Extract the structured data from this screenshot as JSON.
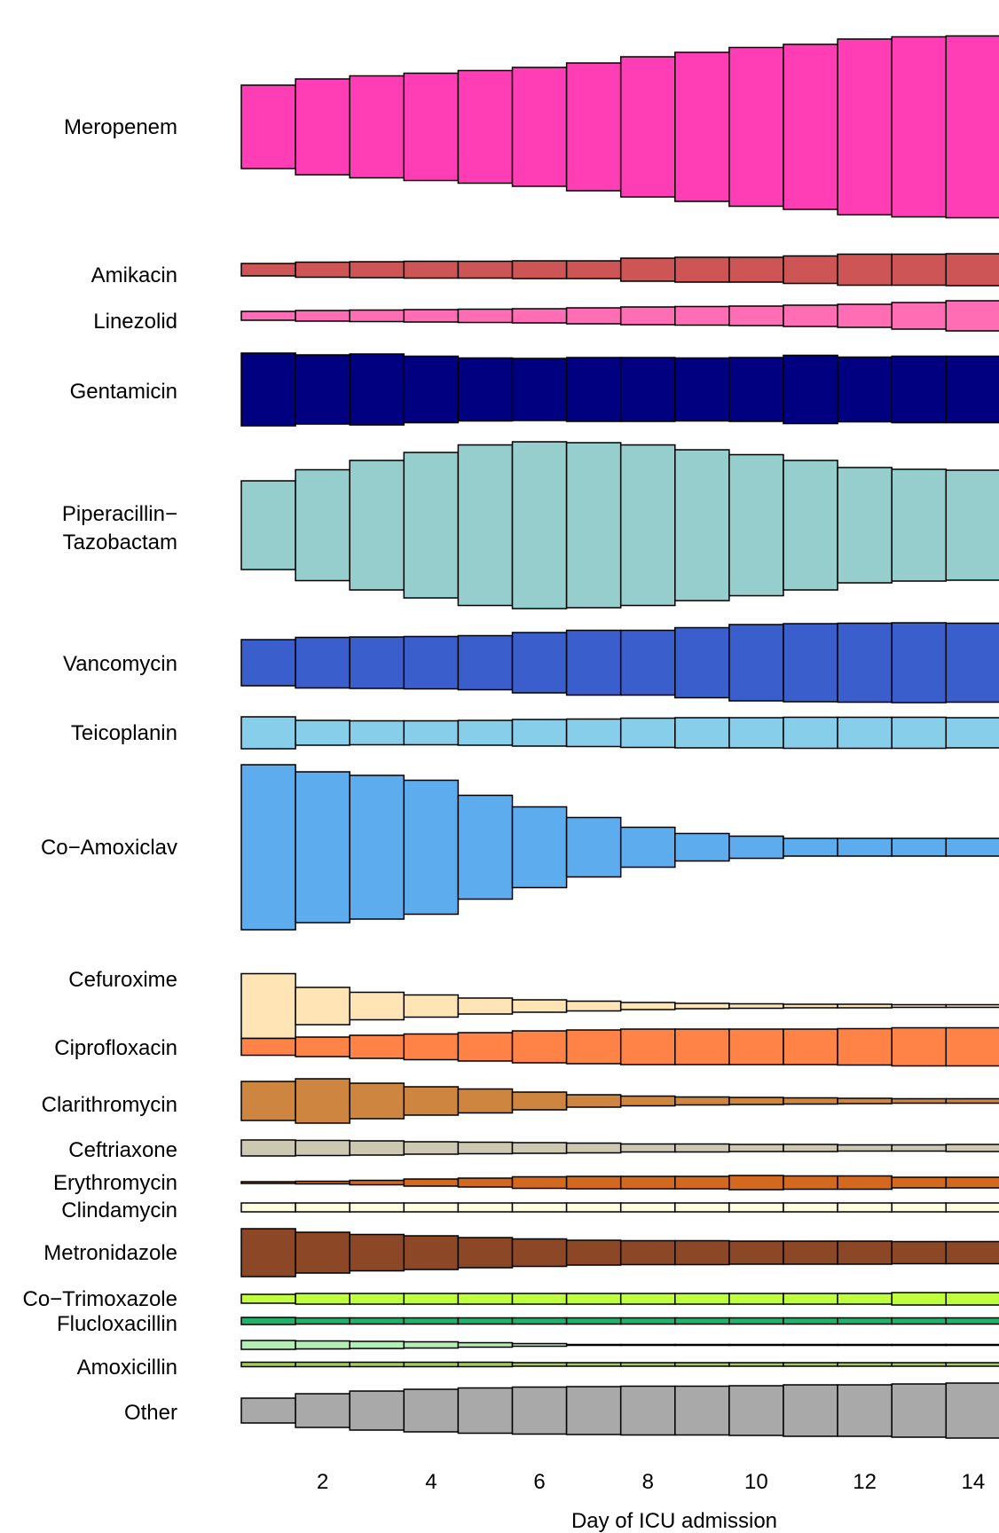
{
  "chart_data": {
    "type": "bar",
    "subtype": "stacked-width-streams",
    "xlabel": "Day of ICU admission",
    "x_ticks": [
      2,
      4,
      6,
      8,
      10,
      12,
      14
    ],
    "days": [
      1,
      2,
      3,
      4,
      5,
      6,
      7,
      8,
      9,
      10,
      11,
      12,
      13,
      14
    ],
    "series": [
      {
        "name": "Meropenem",
        "label_lines": [
          "Meropenem"
        ],
        "color": "#FF3EB5",
        "values": [
          94,
          108,
          115,
          121,
          127,
          134,
          144,
          158,
          168,
          179,
          186,
          198,
          203,
          205
        ]
      },
      {
        "name": "Amikacin",
        "label_lines": [
          "Amikacin"
        ],
        "color": "#CD5555",
        "values": [
          14,
          17,
          18,
          19,
          19,
          20,
          20,
          26,
          28,
          28,
          31,
          35,
          35,
          36
        ]
      },
      {
        "name": "Linezolid",
        "label_lines": [
          "Linezolid"
        ],
        "color": "#FF6EB4",
        "values": [
          10,
          12,
          13,
          14,
          15,
          16,
          18,
          20,
          21,
          22,
          24,
          26,
          30,
          34
        ]
      },
      {
        "name": "Gentamicin",
        "label_lines": [
          "Gentamicin"
        ],
        "color": "#000080",
        "values": [
          82,
          78,
          80,
          75,
          71,
          70,
          72,
          72,
          71,
          72,
          77,
          73,
          75,
          75
        ]
      },
      {
        "name": "Piperacillin-Tazobactam",
        "label_lines": [
          "Piperacillin−",
          "Tazobactam"
        ],
        "color": "#96CDCD",
        "values": [
          100,
          125,
          146,
          164,
          181,
          188,
          186,
          181,
          170,
          159,
          146,
          130,
          126,
          124
        ]
      },
      {
        "name": "Vancomycin",
        "label_lines": [
          "Vancomycin"
        ],
        "color": "#3A5FCD",
        "values": [
          52,
          57,
          58,
          59,
          61,
          68,
          73,
          73,
          79,
          86,
          88,
          89,
          90,
          89
        ]
      },
      {
        "name": "Teicoplanin",
        "label_lines": [
          "Teicoplanin"
        ],
        "color": "#87CEEB",
        "values": [
          36,
          28,
          27,
          27,
          28,
          30,
          31,
          33,
          34,
          34,
          35,
          35,
          35,
          34
        ]
      },
      {
        "name": "Co-Amoxiclav",
        "label_lines": [
          "Co−Amoxiclav"
        ],
        "color": "#5CACEE",
        "values": [
          186,
          170,
          162,
          151,
          117,
          91,
          67,
          45,
          31,
          25,
          20,
          20,
          20,
          20
        ]
      },
      {
        "name": "Cefuroxime",
        "label_lines": [
          "Cefuroxime"
        ],
        "color": "#FFE4B5",
        "values": [
          73,
          42,
          31,
          25,
          18,
          14,
          11,
          8,
          6,
          5,
          4,
          4,
          3,
          3
        ]
      },
      {
        "name": "Ciprofloxacin",
        "label_lines": [
          "Ciprofloxacin"
        ],
        "color": "#FF8247",
        "values": [
          19,
          22,
          26,
          29,
          32,
          36,
          38,
          40,
          40,
          40,
          40,
          41,
          43,
          43
        ]
      },
      {
        "name": "Clarithromycin",
        "label_lines": [
          "Clarithromycin"
        ],
        "color": "#CD853F",
        "values": [
          44,
          50,
          40,
          32,
          27,
          20,
          14,
          11,
          9,
          8,
          7,
          6,
          5,
          5
        ]
      },
      {
        "name": "Ceftriaxone",
        "label_lines": [
          "Ceftriaxone"
        ],
        "color": "#CDC8B1",
        "values": [
          18,
          17,
          16,
          14,
          13,
          12,
          11,
          9,
          9,
          8,
          8,
          7,
          7,
          8
        ]
      },
      {
        "name": "Erythromycin",
        "label_lines": [
          "Erythromycin"
        ],
        "color": "#D2691E",
        "values": [
          2,
          3,
          5,
          8,
          10,
          13,
          14,
          14,
          14,
          16,
          15,
          15,
          12,
          12
        ]
      },
      {
        "name": "Clindamycin",
        "label_lines": [
          "Clindamycin"
        ],
        "color": "#FFFFE0",
        "values": [
          10,
          10,
          10,
          10,
          10,
          10,
          10,
          10,
          10,
          10,
          10,
          10,
          10,
          10
        ]
      },
      {
        "name": "Metronidazole",
        "label_lines": [
          "Metronidazole"
        ],
        "color": "#8B4726",
        "values": [
          54,
          46,
          41,
          38,
          34,
          31,
          28,
          27,
          27,
          26,
          26,
          26,
          25,
          25
        ]
      },
      {
        "name": "Co-Trimoxazole",
        "label_lines": [
          "Co−Trimoxazole"
        ],
        "color": "#C0FF3E",
        "values": [
          10,
          12,
          12,
          12,
          12,
          12,
          12,
          12,
          12,
          12,
          12,
          12,
          14,
          14
        ]
      },
      {
        "name": "Flucloxacillin",
        "label_lines": [
          "Flucloxacillin"
        ],
        "color": "#20B26B",
        "values": [
          8,
          7,
          7,
          7,
          7,
          7,
          7,
          7,
          7,
          7,
          7,
          7,
          7,
          7
        ]
      },
      {
        "name": "Amoxicillin (light)",
        "label_lines": [],
        "color": "#B4EEB4",
        "values": [
          10,
          9,
          8,
          7,
          5,
          3,
          1,
          1,
          1,
          1,
          1,
          1,
          1,
          1
        ]
      },
      {
        "name": "Amoxicillin",
        "label_lines": [
          "Amoxicillin"
        ],
        "color": "#A2CD5A",
        "values": [
          5,
          5,
          5,
          5,
          5,
          4,
          4,
          4,
          4,
          4,
          4,
          4,
          4,
          4
        ]
      },
      {
        "name": "Other",
        "label_lines": [
          "Other"
        ],
        "color": "#A9A9A9",
        "values": [
          28,
          38,
          44,
          48,
          51,
          53,
          54,
          55,
          55,
          56,
          58,
          58,
          60,
          62
        ]
      }
    ],
    "centers": [
      143,
      304,
      356,
      439,
      592,
      747,
      826,
      955,
      1134,
      1180,
      1241,
      1294,
      1333,
      1361,
      1412,
      1464,
      1489,
      1516,
      1538,
      1590
    ],
    "label_y": [
      [
        143
      ],
      [
        310
      ],
      [
        362
      ],
      [
        441
      ],
      [
        579,
        611
      ],
      [
        748
      ],
      [
        826
      ],
      [
        955
      ],
      [
        1104
      ],
      [
        1181
      ],
      [
        1245
      ],
      [
        1296
      ],
      [
        1333
      ],
      [
        1364
      ],
      [
        1412
      ],
      [
        1464
      ],
      [
        1492
      ],
      [],
      [
        1541
      ],
      [
        1592
      ]
    ]
  }
}
